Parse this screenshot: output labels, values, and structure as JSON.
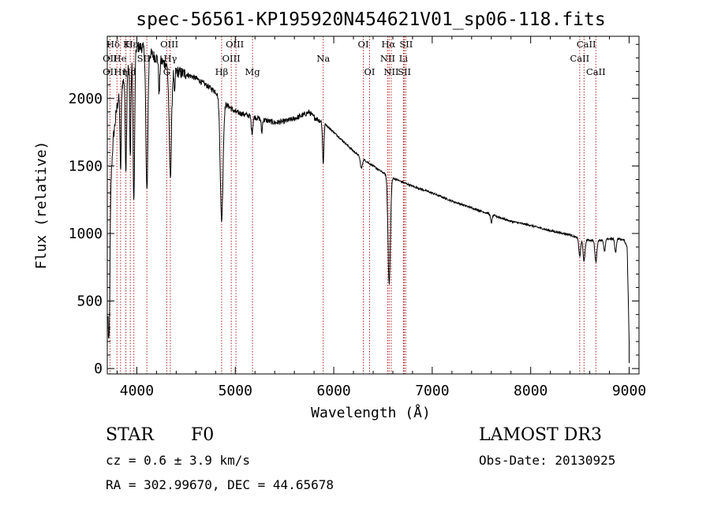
{
  "chart_data": {
    "type": "line",
    "title": "spec-56561-KP195920N454621V01_sp06-118.fits",
    "xlabel": "Wavelength (Å)",
    "ylabel": "Flux (relative)",
    "xlim": [
      3700,
      9100
    ],
    "ylim": [
      -40,
      2460
    ],
    "x_ticks": [
      4000,
      5000,
      6000,
      7000,
      8000,
      9000
    ],
    "x_tick_labels": [
      "4000",
      "5000",
      "6000",
      "7000",
      "8000",
      "9000"
    ],
    "y_ticks": [
      0,
      500,
      1000,
      1500,
      2000
    ],
    "y_tick_labels": [
      "0",
      "500",
      "1000",
      "1500",
      "2000"
    ],
    "continuum": {
      "x": [
        3710,
        3730,
        3760,
        3800,
        3850,
        3900,
        3950,
        4000,
        4050,
        4100,
        4200,
        4300,
        4400,
        4500,
        4600,
        4700,
        4800,
        4900,
        5000,
        5100,
        5200,
        5300,
        5400,
        5500,
        5600,
        5700,
        5750,
        5800,
        5900,
        6000,
        6100,
        6200,
        6300,
        6400,
        6500,
        6600,
        6700,
        6800,
        7000,
        7200,
        7400,
        7600,
        7800,
        8000,
        8200,
        8400,
        8500,
        8600,
        8700,
        8800,
        8900,
        8950,
        8980,
        9000
      ],
      "y": [
        600,
        1300,
        1700,
        1950,
        2100,
        2200,
        2300,
        2380,
        2380,
        2350,
        2300,
        2250,
        2200,
        2180,
        2150,
        2100,
        2050,
        1960,
        1900,
        1880,
        1860,
        1840,
        1820,
        1830,
        1850,
        1880,
        1900,
        1860,
        1820,
        1750,
        1680,
        1610,
        1550,
        1500,
        1450,
        1410,
        1380,
        1350,
        1300,
        1240,
        1190,
        1140,
        1090,
        1060,
        1020,
        990,
        960,
        950,
        950,
        960,
        960,
        950,
        900,
        200
      ]
    },
    "absorption": [
      {
        "x": 3720,
        "depth": 700,
        "width": 8
      },
      {
        "x": 3835,
        "depth": 600,
        "width": 6
      },
      {
        "x": 3889,
        "depth": 700,
        "width": 7
      },
      {
        "x": 3934,
        "depth": 700,
        "width": 6
      },
      {
        "x": 3970,
        "depth": 1100,
        "width": 8
      },
      {
        "x": 4102,
        "depth": 1050,
        "width": 10
      },
      {
        "x": 4227,
        "depth": 250,
        "width": 6
      },
      {
        "x": 4340,
        "depth": 800,
        "width": 12
      },
      {
        "x": 4383,
        "depth": 200,
        "width": 5
      },
      {
        "x": 4861,
        "depth": 900,
        "width": 14
      },
      {
        "x": 5170,
        "depth": 120,
        "width": 8
      },
      {
        "x": 5269,
        "depth": 100,
        "width": 6
      },
      {
        "x": 5893,
        "depth": 300,
        "width": 7
      },
      {
        "x": 6280,
        "depth": 80,
        "width": 10
      },
      {
        "x": 6563,
        "depth": 800,
        "width": 12
      },
      {
        "x": 7600,
        "depth": 60,
        "width": 8
      },
      {
        "x": 8498,
        "depth": 130,
        "width": 9
      },
      {
        "x": 8542,
        "depth": 160,
        "width": 10
      },
      {
        "x": 8662,
        "depth": 160,
        "width": 10
      },
      {
        "x": 8750,
        "depth": 90,
        "width": 8
      },
      {
        "x": 8862,
        "depth": 100,
        "width": 8
      }
    ],
    "line_markers": [
      {
        "label": "Hδ",
        "x": 3760,
        "row": 1
      },
      {
        "label": "K",
        "x": 3895,
        "row": 1
      },
      {
        "label": "Hε",
        "x": 3945,
        "row": 1
      },
      {
        "label": "OIII",
        "x": 4330,
        "row": 1
      },
      {
        "label": "OIII",
        "x": 4995,
        "row": 1
      },
      {
        "label": "OI",
        "x": 6300,
        "row": 1
      },
      {
        "label": "Hα",
        "x": 6555,
        "row": 1
      },
      {
        "label": "SII",
        "x": 6735,
        "row": 1
      },
      {
        "label": "CaII",
        "x": 8565,
        "row": 1
      },
      {
        "label": "OII",
        "x": 3727,
        "row": 2
      },
      {
        "label": "He",
        "x": 3828,
        "row": 2
      },
      {
        "label": "SII",
        "x": 4069,
        "row": 2
      },
      {
        "label": "Hγ",
        "x": 4340,
        "row": 2
      },
      {
        "label": "OIII",
        "x": 4959,
        "row": 2
      },
      {
        "label": "Na",
        "x": 5893,
        "row": 2
      },
      {
        "label": "NII",
        "x": 6548,
        "row": 2
      },
      {
        "label": "Li",
        "x": 6708,
        "row": 2
      },
      {
        "label": "CaII",
        "x": 8498,
        "row": 2
      },
      {
        "label": "OII",
        "x": 3727,
        "row": 3
      },
      {
        "label": "Hη",
        "x": 3835,
        "row": 3
      },
      {
        "label": "G",
        "x": 4304,
        "row": 3
      },
      {
        "label": "Hβ",
        "x": 4861,
        "row": 3
      },
      {
        "label": "Mg",
        "x": 5175,
        "row": 3
      },
      {
        "label": "OI",
        "x": 6364,
        "row": 3
      },
      {
        "label": "NII",
        "x": 6584,
        "row": 3
      },
      {
        "label": "SII",
        "x": 6717,
        "row": 3
      },
      {
        "label": "CaII",
        "x": 8662,
        "row": 3
      },
      {
        "label": "Hd",
        "x": 3925,
        "row": 3
      }
    ],
    "marker_lines_x": [
      3727,
      3798,
      3835,
      3889,
      3934,
      3970,
      4102,
      4304,
      4340,
      4861,
      4959,
      5007,
      5175,
      5893,
      6300,
      6364,
      6548,
      6563,
      6584,
      6708,
      6717,
      6731,
      8498,
      8542,
      8662
    ],
    "colors": {
      "spectrum": "#000000",
      "marker": "#b22222",
      "axis": "#000000"
    }
  },
  "info": {
    "class_label": "STAR",
    "subclass": "F0",
    "redshift": "cz = 0.6 ± 3.9 km/s",
    "coords": "RA = 302.99670, DEC =  44.65678",
    "survey": "LAMOST DR3",
    "obs_date": "Obs-Date: 20130925"
  }
}
